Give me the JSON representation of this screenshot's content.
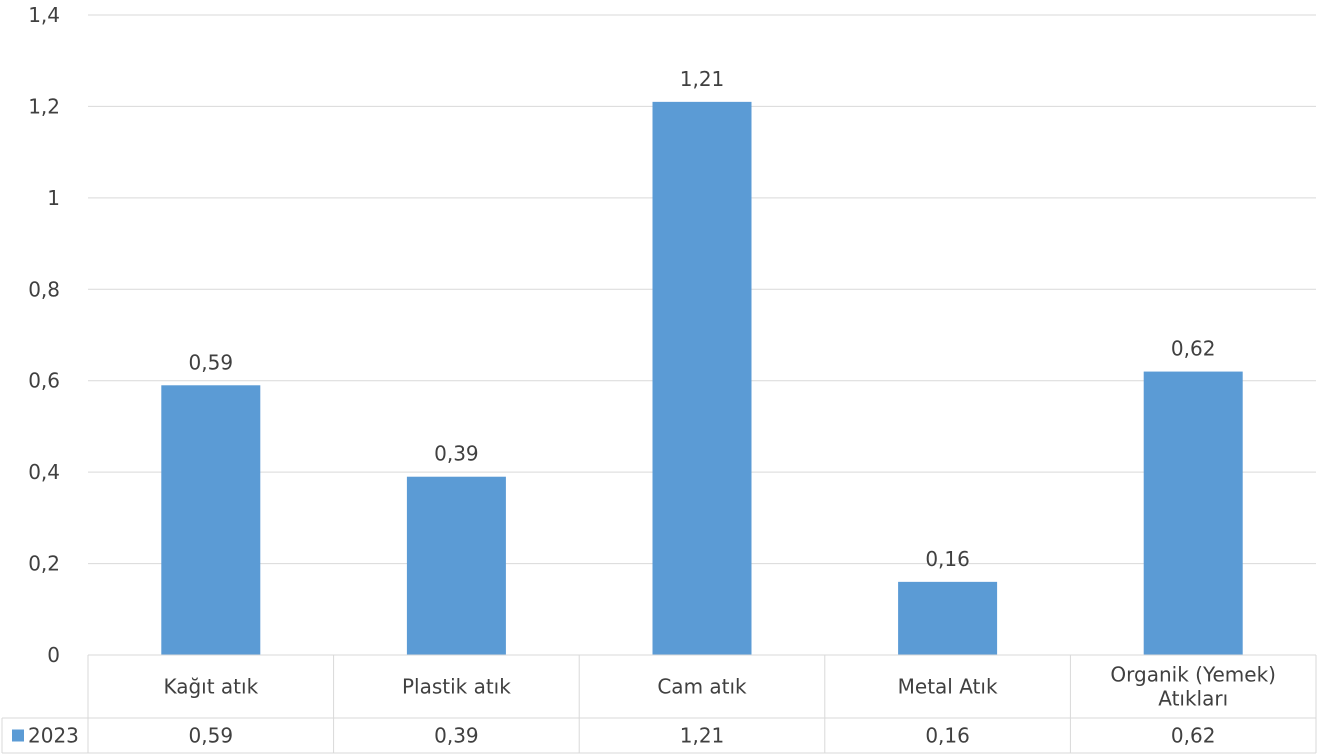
{
  "chart_data": {
    "type": "bar",
    "categories": [
      "Kağıt atık",
      "Plastik atık",
      "Cam atık",
      "Metal Atık",
      "Organik (Yemek) Atıkları"
    ],
    "series": [
      {
        "name": "2023",
        "values": [
          0.59,
          0.39,
          1.21,
          0.16,
          0.62
        ],
        "color": "#5b9bd5"
      }
    ],
    "data_labels": [
      "0,59",
      "0,39",
      "1,21",
      "0,16",
      "0,62"
    ],
    "ylim": [
      0,
      1.4
    ],
    "yticks": [
      0,
      0.2,
      0.4,
      0.6,
      0.8,
      1,
      1.2,
      1.4
    ],
    "ytick_labels": [
      "0",
      "0,2",
      "0,4",
      "0,6",
      "0,8",
      "1",
      "1,2",
      "1,4"
    ],
    "grid": true,
    "data_table": true,
    "legend": "data-table-row",
    "title": "",
    "xlabel": "",
    "ylabel": ""
  }
}
